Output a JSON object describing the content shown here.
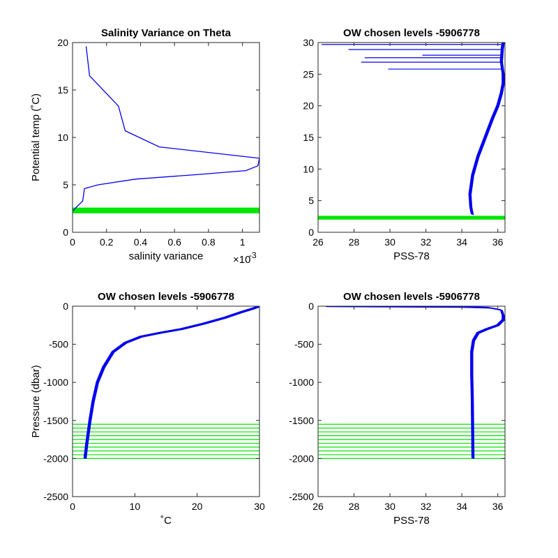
{
  "colors": {
    "line": "#0000ee",
    "chosen": "#00e600",
    "axis": "#262626"
  },
  "chart_data": [
    {
      "type": "line",
      "title": "Salinity Variance on Theta",
      "xlabel": "salinity variance",
      "ylabel": "Potential temp (˚C)",
      "xlim": [
        0,
        0.0011
      ],
      "ylim": [
        0,
        20
      ],
      "x_multiplier_label": "×10",
      "x_multiplier_exponent": "-3",
      "xticks": [
        0,
        0.0002,
        0.0004,
        0.0006,
        0.0008,
        0.001
      ],
      "xtick_labels": [
        "0",
        "0.2",
        "0.4",
        "0.6",
        "0.8",
        "1"
      ],
      "yticks": [
        0,
        5,
        10,
        15,
        20
      ],
      "ytick_labels": [
        "0",
        "5",
        "10",
        "15",
        "20"
      ],
      "grid": false,
      "series": [
        {
          "x": [
            8e-05,
            0.0001,
            0.00027,
            0.00031,
            0.00051,
            0.0011,
            0.00109,
            0.00102,
            0.00075,
            0.00037,
            0.00015,
            7e-05,
            6e-05,
            2e-05,
            5e-06
          ],
          "y": [
            19.6,
            16.5,
            13.3,
            10.7,
            9.0,
            7.8,
            7.0,
            6.5,
            6.1,
            5.6,
            5.0,
            4.6,
            3.3,
            2.6,
            2.3
          ]
        }
      ],
      "chosen_levels": {
        "type": "band",
        "y": [
          2.0,
          2.6
        ]
      }
    },
    {
      "type": "line",
      "title": "OW chosen levels -5906778",
      "xlabel": "PSS-78",
      "xlim": [
        26,
        36.4
      ],
      "ylim": [
        0,
        30
      ],
      "xticks": [
        26,
        28,
        30,
        32,
        34,
        36
      ],
      "xtick_labels": [
        "26",
        "28",
        "30",
        "32",
        "34",
        "36"
      ],
      "yticks": [
        0,
        5,
        10,
        15,
        20,
        25,
        30
      ],
      "ytick_labels": [
        "0",
        "5",
        "10",
        "15",
        "20",
        "25",
        "30"
      ],
      "grid": false,
      "series": [
        {
          "x": [
            34.58,
            34.5,
            34.45,
            34.6,
            34.9,
            35.3,
            35.7,
            36.0,
            36.2,
            36.3,
            36.3,
            36.2,
            36.25,
            36.3
          ],
          "y": [
            2.8,
            4.0,
            6.0,
            9.0,
            12.0,
            15.0,
            18.0,
            20.0,
            22.0,
            23.5,
            25.0,
            27.0,
            29.0,
            30.0
          ]
        }
      ],
      "spikes": [
        {
          "y": 29.7,
          "x0": 26.2
        },
        {
          "y": 28.9,
          "x0": 27.7
        },
        {
          "y": 28.0,
          "x0": 31.8
        },
        {
          "y": 27.6,
          "x0": 28.6
        },
        {
          "y": 26.9,
          "x0": 28.4
        },
        {
          "y": 25.8,
          "x0": 29.9
        }
      ],
      "chosen_levels": {
        "type": "band",
        "y": [
          2.0,
          2.6
        ]
      }
    },
    {
      "type": "line",
      "title": "OW chosen levels -5906778",
      "xlabel": "˚C",
      "ylabel": "Pressure (dbar)",
      "xlim": [
        0,
        30
      ],
      "ylim": [
        -2500,
        0
      ],
      "xticks": [
        0,
        10,
        20,
        30
      ],
      "xtick_labels": [
        "0",
        "10",
        "20",
        "30"
      ],
      "yticks": [
        -2500,
        -2000,
        -1500,
        -1000,
        -500,
        0
      ],
      "ytick_labels": [
        "-2500",
        "-2000",
        "-1500",
        "-1000",
        "-500",
        "0"
      ],
      "grid": false,
      "series": [
        {
          "x": [
            2.0,
            2.3,
            2.8,
            3.3,
            4.0,
            5.0,
            6.5,
            8.5,
            11.0,
            14.0,
            17.5,
            21.0,
            24.5,
            27.0,
            29.0,
            30.0
          ],
          "y": [
            -2000,
            -1800,
            -1500,
            -1250,
            -1000,
            -800,
            -600,
            -480,
            -400,
            -350,
            -300,
            -230,
            -150,
            -80,
            -30,
            0
          ]
        }
      ],
      "chosen_levels": {
        "type": "lines",
        "y": [
          -1550,
          -1600,
          -1650,
          -1700,
          -1750,
          -1800,
          -1850,
          -1900,
          -1950,
          -2000
        ]
      }
    },
    {
      "type": "line",
      "title": "OW chosen levels -5906778",
      "xlabel": "PSS-78",
      "xlim": [
        26,
        36.4
      ],
      "ylim": [
        -2500,
        0
      ],
      "xticks": [
        26,
        28,
        30,
        32,
        34,
        36
      ],
      "xtick_labels": [
        "26",
        "28",
        "30",
        "32",
        "34",
        "36"
      ],
      "yticks": [
        -2500,
        -2000,
        -1500,
        -1000,
        -500,
        0
      ],
      "ytick_labels": [
        "-2500",
        "-2000",
        "-1500",
        "-1000",
        "-500",
        "0"
      ],
      "grid": false,
      "series": [
        {
          "x": [
            34.62,
            34.6,
            34.58,
            34.55,
            34.55,
            34.65,
            34.9,
            35.4,
            36.0,
            36.3,
            36.3,
            36.2,
            35.5,
            34.0,
            30.0,
            26.4
          ],
          "y": [
            -2000,
            -1600,
            -1200,
            -900,
            -600,
            -450,
            -350,
            -300,
            -250,
            -180,
            -120,
            -50,
            -20,
            -10,
            -5,
            0
          ]
        }
      ],
      "chosen_levels": {
        "type": "lines",
        "y": [
          -1550,
          -1600,
          -1650,
          -1700,
          -1750,
          -1800,
          -1850,
          -1900,
          -1950,
          -2000
        ]
      }
    }
  ]
}
